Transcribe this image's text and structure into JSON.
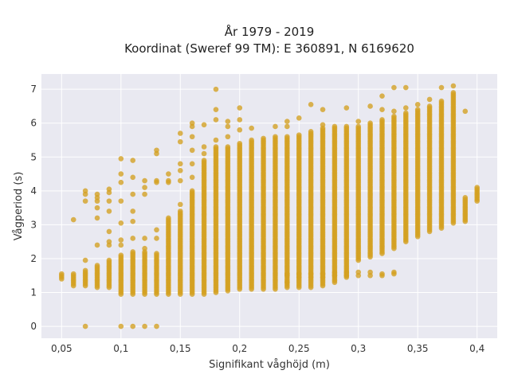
{
  "chart_data": {
    "type": "scatter",
    "title": "År 1979 - 2019",
    "subtitle": "Koordinat (Sweref 99 TM): E 360891, N 6169620",
    "xlabel": "Signifikant våghöjd (m)",
    "ylabel": "Vågperiod (s)",
    "xlim": [
      0.033,
      0.417
    ],
    "ylim": [
      -0.35,
      7.45
    ],
    "x_ticks": [
      0.05,
      0.1,
      0.15,
      0.2,
      0.25,
      0.3,
      0.35,
      0.4
    ],
    "x_tick_labels": [
      "0,05",
      "0,1",
      "0,15",
      "0,2",
      "0,25",
      "0,3",
      "0,35",
      "0,4"
    ],
    "y_ticks": [
      0,
      1,
      2,
      3,
      4,
      5,
      6,
      7
    ],
    "y_tick_labels": [
      "0",
      "1",
      "2",
      "3",
      "4",
      "5",
      "6",
      "7"
    ],
    "grid": true,
    "legend": "none",
    "colors": {
      "marker": "#d4a020",
      "plot_bg": "#e9e9f1",
      "grid": "#ffffff"
    },
    "columns": [
      {
        "x": 0.05,
        "y_min": 1.4,
        "y_max": 1.55,
        "extra": []
      },
      {
        "x": 0.06,
        "y_min": 1.2,
        "y_max": 1.55,
        "extra": [
          3.15
        ]
      },
      {
        "x": 0.07,
        "y_min": 1.2,
        "y_max": 1.65,
        "extra": [
          0.0,
          1.95,
          3.7,
          3.9,
          4.0
        ]
      },
      {
        "x": 0.08,
        "y_min": 1.15,
        "y_max": 1.8,
        "extra": [
          2.4,
          3.2,
          3.5,
          3.7,
          3.8,
          3.9
        ]
      },
      {
        "x": 0.09,
        "y_min": 1.15,
        "y_max": 1.95,
        "extra": [
          2.4,
          2.5,
          2.8,
          3.4,
          3.7,
          3.95,
          4.05
        ]
      },
      {
        "x": 0.1,
        "y_min": 0.95,
        "y_max": 2.1,
        "extra": [
          0.0,
          2.4,
          2.55,
          3.05,
          3.7,
          4.25,
          4.5,
          4.95
        ]
      },
      {
        "x": 0.11,
        "y_min": 0.95,
        "y_max": 2.2,
        "extra": [
          0.0,
          2.6,
          3.1,
          3.4,
          3.9,
          4.4,
          4.9
        ]
      },
      {
        "x": 0.12,
        "y_min": 0.95,
        "y_max": 2.2,
        "extra": [
          0.0,
          2.3,
          2.6,
          3.9,
          4.1,
          4.3
        ]
      },
      {
        "x": 0.13,
        "y_min": 0.95,
        "y_max": 2.15,
        "extra": [
          0.0,
          2.6,
          2.85,
          4.25,
          4.3,
          5.1,
          5.2
        ]
      },
      {
        "x": 0.14,
        "y_min": 0.95,
        "y_max": 3.2,
        "extra": [
          4.25,
          4.3,
          4.5
        ]
      },
      {
        "x": 0.15,
        "y_min": 0.95,
        "y_max": 3.4,
        "extra": [
          3.6,
          4.3,
          4.6,
          4.8,
          5.45,
          5.7
        ]
      },
      {
        "x": 0.16,
        "y_min": 0.95,
        "y_max": 4.0,
        "extra": [
          4.4,
          4.8,
          5.2,
          5.6,
          5.9,
          6.0
        ]
      },
      {
        "x": 0.17,
        "y_min": 0.95,
        "y_max": 4.9,
        "extra": [
          5.1,
          5.3,
          5.95
        ]
      },
      {
        "x": 0.18,
        "y_min": 1.0,
        "y_max": 5.3,
        "extra": [
          5.5,
          6.1,
          6.4,
          7.0
        ]
      },
      {
        "x": 0.19,
        "y_min": 1.05,
        "y_max": 5.3,
        "extra": [
          5.6,
          5.9,
          6.05
        ]
      },
      {
        "x": 0.2,
        "y_min": 1.1,
        "y_max": 5.4,
        "extra": [
          5.8,
          6.1,
          6.45
        ]
      },
      {
        "x": 0.21,
        "y_min": 1.1,
        "y_max": 5.5,
        "extra": [
          5.85
        ]
      },
      {
        "x": 0.22,
        "y_min": 1.1,
        "y_max": 5.55,
        "extra": []
      },
      {
        "x": 0.23,
        "y_min": 1.1,
        "y_max": 5.6,
        "extra": [
          5.9
        ]
      },
      {
        "x": 0.24,
        "y_min": 1.15,
        "y_max": 5.6,
        "extra": [
          1.3,
          1.5,
          1.55,
          5.9,
          6.05
        ]
      },
      {
        "x": 0.25,
        "y_min": 1.15,
        "y_max": 5.65,
        "extra": [
          1.45,
          1.55,
          6.15
        ]
      },
      {
        "x": 0.26,
        "y_min": 1.15,
        "y_max": 5.75,
        "extra": [
          1.45,
          1.55,
          6.55
        ]
      },
      {
        "x": 0.27,
        "y_min": 1.2,
        "y_max": 5.85,
        "extra": [
          1.45,
          1.55,
          5.95,
          6.4
        ]
      },
      {
        "x": 0.28,
        "y_min": 1.3,
        "y_max": 5.9,
        "extra": [
          1.5,
          1.6
        ]
      },
      {
        "x": 0.29,
        "y_min": 1.45,
        "y_max": 5.9,
        "extra": [
          1.5,
          1.6,
          6.45
        ]
      },
      {
        "x": 0.3,
        "y_min": 1.95,
        "y_max": 5.9,
        "extra": [
          1.5,
          1.6,
          6.05
        ]
      },
      {
        "x": 0.31,
        "y_min": 2.05,
        "y_max": 6.0,
        "extra": [
          1.5,
          1.6,
          6.5
        ]
      },
      {
        "x": 0.32,
        "y_min": 2.15,
        "y_max": 6.1,
        "extra": [
          1.5,
          1.55,
          6.4,
          6.8
        ]
      },
      {
        "x": 0.33,
        "y_min": 2.3,
        "y_max": 6.2,
        "extra": [
          1.55,
          1.6,
          6.35,
          7.05
        ]
      },
      {
        "x": 0.34,
        "y_min": 2.5,
        "y_max": 6.3,
        "extra": [
          6.45,
          7.05
        ]
      },
      {
        "x": 0.35,
        "y_min": 2.65,
        "y_max": 6.4,
        "extra": [
          6.55
        ]
      },
      {
        "x": 0.36,
        "y_min": 2.8,
        "y_max": 6.5,
        "extra": [
          6.7
        ]
      },
      {
        "x": 0.37,
        "y_min": 2.9,
        "y_max": 6.65,
        "extra": [
          7.05
        ]
      },
      {
        "x": 0.38,
        "y_min": 3.05,
        "y_max": 6.9,
        "extra": [
          7.1
        ]
      },
      {
        "x": 0.39,
        "y_min": 3.1,
        "y_max": 3.8,
        "extra": [
          6.35
        ]
      },
      {
        "x": 0.4,
        "y_min": 3.7,
        "y_max": 4.1,
        "extra": []
      }
    ]
  }
}
